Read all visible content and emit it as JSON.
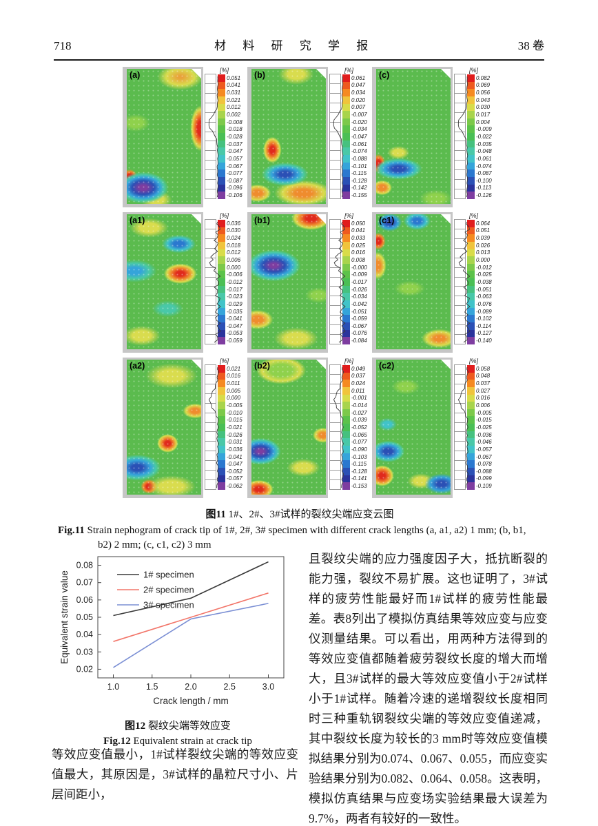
{
  "header": {
    "page_number": "718",
    "journal_title": "材 料 研 究 学 报",
    "volume": "38 卷"
  },
  "fig11": {
    "unit_label": "[%]",
    "palette": [
      "#e11d1d",
      "#ee5a1f",
      "#f58a21",
      "#f0c43c",
      "#d8dc4a",
      "#a8d44c",
      "#7cc94a",
      "#5cc24a",
      "#4abf55",
      "#46c17f",
      "#49c8a8",
      "#41c3c9",
      "#35a4da",
      "#2b78cf",
      "#2b50b5",
      "#2a339c",
      "#7e3da0"
    ],
    "panels": [
      {
        "label": "(a)",
        "values": [
          "0.051",
          "0.041",
          "0.031",
          "0.021",
          "0.012",
          "0.002",
          "-0.008",
          "-0.018",
          "-0.028",
          "-0.037",
          "-0.047",
          "-0.057",
          "-0.067",
          "-0.077",
          "-0.087",
          "-0.096",
          "-0.106"
        ]
      },
      {
        "label": "(b)",
        "values": [
          "0.061",
          "0.047",
          "0.034",
          "0.020",
          "0.007",
          "-0.007",
          "-0.020",
          "-0.034",
          "-0.047",
          "-0.061",
          "-0.074",
          "-0.088",
          "-0.101",
          "-0.115",
          "-0.128",
          "-0.142",
          "-0.155"
        ]
      },
      {
        "label": "(c)",
        "values": [
          "0.082",
          "0.069",
          "0.056",
          "0.043",
          "0.030",
          "0.017",
          "0.004",
          "-0.009",
          "-0.022",
          "-0.035",
          "-0.048",
          "-0.061",
          "-0.074",
          "-0.087",
          "-0.100",
          "-0.113",
          "-0.126"
        ]
      },
      {
        "label": "(a1)",
        "values": [
          "0.036",
          "0.030",
          "0.024",
          "0.018",
          "0.012",
          "0.006",
          "0.000",
          "-0.006",
          "-0.012",
          "-0.017",
          "-0.023",
          "-0.029",
          "-0.035",
          "-0.041",
          "-0.047",
          "-0.053",
          "-0.059"
        ]
      },
      {
        "label": "(b1)",
        "values": [
          "0.050",
          "0.041",
          "0.033",
          "0.025",
          "0.016",
          "0.008",
          "-0.000",
          "-0.009",
          "-0.017",
          "-0.026",
          "-0.034",
          "-0.042",
          "-0.051",
          "-0.059",
          "-0.067",
          "-0.076",
          "-0.084"
        ]
      },
      {
        "label": "(c1)",
        "values": [
          "0.064",
          "0.051",
          "0.039",
          "0.026",
          "0.013",
          "0.000",
          "-0.012",
          "-0.025",
          "-0.038",
          "-0.051",
          "-0.063",
          "-0.076",
          "-0.089",
          "-0.102",
          "-0.114",
          "-0.127",
          "-0.140"
        ]
      },
      {
        "label": "(a2)",
        "values": [
          "0.021",
          "0.016",
          "0.011",
          "0.005",
          "0.000",
          "-0.005",
          "-0.010",
          "-0.015",
          "-0.021",
          "-0.026",
          "-0.031",
          "-0.036",
          "-0.041",
          "-0.047",
          "-0.052",
          "-0.057",
          "-0.062"
        ]
      },
      {
        "label": "(b2)",
        "values": [
          "0.049",
          "0.037",
          "0.024",
          "0.011",
          "-0.001",
          "-0.014",
          "-0.027",
          "-0.039",
          "-0.052",
          "-0.065",
          "-0.077",
          "-0.090",
          "-0.103",
          "-0.115",
          "-0.128",
          "-0.141",
          "-0.153"
        ]
      },
      {
        "label": "(c2)",
        "values": [
          "0.058",
          "0.048",
          "0.037",
          "0.027",
          "0.016",
          "0.006",
          "-0.005",
          "-0.015",
          "-0.025",
          "-0.036",
          "-0.046",
          "-0.057",
          "-0.067",
          "-0.078",
          "-0.088",
          "-0.099",
          "-0.109"
        ]
      }
    ],
    "caption_cn_label": "图11",
    "caption_cn_text": "1#、2#、3#试样的裂纹尖端应变云图",
    "caption_en_label": "Fig.11",
    "caption_en_text": "Strain nephogram of crack tip of 1#, 2#, 3# specimen with different crack lengths (a, a1, a2) 1 mm; (b, b1, b2) 2 mm; (c, c1, c2) 3 mm"
  },
  "chart_data": {
    "type": "line",
    "x": [
      1.0,
      2.0,
      3.0
    ],
    "series": [
      {
        "name": "1# specimen",
        "color": "#3a3a3a",
        "values": [
          0.051,
          0.061,
          0.082
        ]
      },
      {
        "name": "2# specimen",
        "color": "#f2766a",
        "values": [
          0.036,
          0.05,
          0.064
        ]
      },
      {
        "name": "3# specimen",
        "color": "#7b8fd4",
        "values": [
          0.021,
          0.049,
          0.058
        ]
      }
    ],
    "xlabel": "Crack length / mm",
    "ylabel": "Equivalent strain value",
    "xlim": [
      0.8,
      3.2
    ],
    "ylim": [
      0.015,
      0.085
    ],
    "xticks": [
      "1.0",
      "1.5",
      "2.0",
      "2.5",
      "3.0"
    ],
    "yticks": [
      "0.02",
      "0.03",
      "0.04",
      "0.05",
      "0.06",
      "0.07",
      "0.08"
    ],
    "grid": false,
    "legend_position": "top-left"
  },
  "fig12": {
    "caption_cn_label": "图12",
    "caption_cn_text": "裂纹尖端等效应变",
    "caption_en_label": "Fig.12",
    "caption_en_text": "Equivalent strain at crack tip"
  },
  "body_text": {
    "left_paragraph": "等效应变值最小，1#试样裂纹尖端的等效应变值最大，其原因是，3#试样的晶粒尺寸小、片层间距小，",
    "right_paragraph": "且裂纹尖端的应力强度因子大，抵抗断裂的能力强，裂纹不易扩展。这也证明了，3#试样的疲劳性能最好而1#试样的疲劳性能最差。表8列出了模拟仿真结果等效应变与应变仪测量结果。可以看出，用两种方法得到的等效应变值都随着疲劳裂纹长度的增大而增大，且3#试样的最大等效应变值小于2#试样小于1#试样。随着冷速的递增裂纹长度相同时三种重轨钢裂纹尖端的等效应变值递减，其中裂纹长度为较长的3 mm时等效应变值模拟结果分别为0.074、0.067、0.055，而应变实验结果分别为0.082、0.064、0.058。这表明，模拟仿真结果与应变场实验结果最大误差为9.7%，两者有较好的一致性。"
  }
}
